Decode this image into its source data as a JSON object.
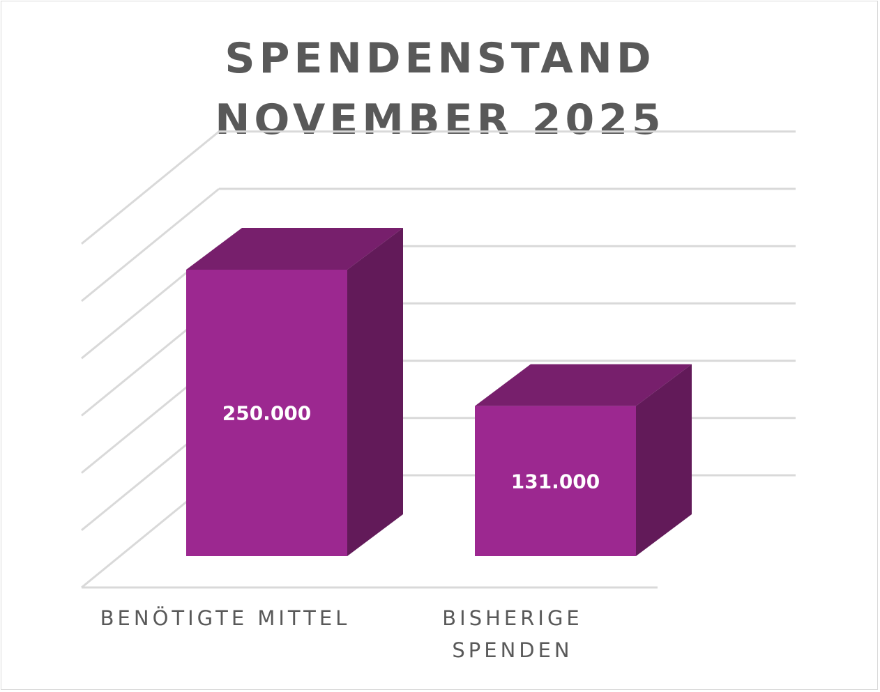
{
  "chart_data": {
    "type": "bar",
    "title": "SPENDENSTAND NOVEMBER 2025",
    "title_lines": [
      "SPENDENSTAND",
      "NOVEMBER 2025"
    ],
    "categories": [
      "BENÖTIGTE MITTEL",
      "BISHERIGE SPENDEN"
    ],
    "category_label_lines": [
      [
        "BENÖTIGTE MITTEL"
      ],
      [
        "BISHERIGE",
        "SPENDEN"
      ]
    ],
    "values": [
      250000,
      131000
    ],
    "data_labels": [
      "250.000",
      "131.000"
    ],
    "ylim": [
      0,
      300000
    ],
    "grid": true,
    "three_d": true,
    "colors": {
      "bar_front": "#9c2890",
      "bar_top": "#771f6c",
      "bar_side": "#621a59",
      "gridline": "#d9d9d9",
      "text": "#595959",
      "data_label": "#ffffff"
    }
  }
}
